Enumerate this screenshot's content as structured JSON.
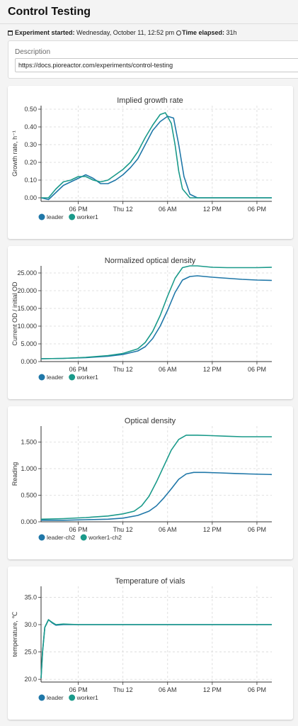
{
  "page": {
    "title": "Control Testing",
    "started_label": "Experiment started:",
    "started_value": "Wednesday, October 11, 12:52 pm",
    "elapsed_label": "Time elapsed:",
    "elapsed_value": "31h",
    "description_label": "Description",
    "description_value": "https://docs.pioreactor.com/experiments/control-testing"
  },
  "colors": {
    "leader": "#1f77a8",
    "worker": "#1a9a8a",
    "grid": "#d9d9d9"
  },
  "chart_data": [
    {
      "type": "line",
      "title": "Implied growth rate",
      "ylabel": "Growth rate, h⁻¹",
      "x_ticks": [
        "06 PM",
        "Thu 12",
        "06 AM",
        "12 PM",
        "06 PM"
      ],
      "x_tick_hours": [
        18,
        24,
        30,
        36,
        42
      ],
      "xlim": [
        13,
        44
      ],
      "ylim": [
        -0.02,
        0.52
      ],
      "y_ticks": [
        0.0,
        0.1,
        0.2,
        0.3,
        0.4,
        0.5
      ],
      "y_tick_labels": [
        "0.00",
        "0.10",
        "0.20",
        "0.30",
        "0.40",
        "0.50"
      ],
      "series": [
        {
          "name": "leader",
          "x": [
            13.0,
            14.0,
            15.0,
            16.0,
            17.0,
            18.0,
            19.0,
            20.0,
            21.0,
            22.0,
            23.0,
            24.0,
            25.0,
            26.0,
            27.0,
            28.0,
            29.0,
            30.0,
            30.8,
            31.5,
            32.2,
            33.0,
            34.0,
            36.0,
            38.0,
            40.0,
            42.0,
            44.0
          ],
          "y": [
            0.0,
            -0.01,
            0.03,
            0.07,
            0.09,
            0.11,
            0.13,
            0.11,
            0.08,
            0.08,
            0.1,
            0.13,
            0.17,
            0.22,
            0.3,
            0.38,
            0.43,
            0.46,
            0.45,
            0.3,
            0.12,
            0.02,
            0.0,
            0.0,
            0.0,
            0.0,
            0.0,
            0.0
          ]
        },
        {
          "name": "worker1",
          "x": [
            13.0,
            14.0,
            15.0,
            16.0,
            17.0,
            18.0,
            19.0,
            20.0,
            21.0,
            22.0,
            23.0,
            24.0,
            25.0,
            26.0,
            27.0,
            28.0,
            29.0,
            29.7,
            30.5,
            31.0,
            31.5,
            32.0,
            33.0,
            34.0,
            36.0,
            38.0,
            40.0,
            42.0,
            44.0
          ],
          "y": [
            0.0,
            0.0,
            0.05,
            0.09,
            0.1,
            0.12,
            0.12,
            0.1,
            0.09,
            0.1,
            0.13,
            0.16,
            0.2,
            0.26,
            0.34,
            0.41,
            0.47,
            0.48,
            0.42,
            0.3,
            0.15,
            0.05,
            0.0,
            0.0,
            0.0,
            0.0,
            0.0,
            0.0,
            0.0
          ]
        }
      ]
    },
    {
      "type": "line",
      "title": "Normalized optical density",
      "ylabel": "Current OD / initial OD",
      "x_ticks": [
        "06 PM",
        "Thu 12",
        "06 AM",
        "12 PM",
        "06 PM"
      ],
      "x_tick_hours": [
        18,
        24,
        30,
        36,
        42
      ],
      "xlim": [
        13,
        44
      ],
      "ylim": [
        0,
        27
      ],
      "y_ticks": [
        0,
        5,
        10,
        15,
        20,
        25
      ],
      "y_tick_labels": [
        "0.000",
        "5.000",
        "10.000",
        "15.000",
        "20.000",
        "25.000"
      ],
      "series": [
        {
          "name": "leader",
          "x": [
            13.0,
            16.0,
            19.0,
            22.0,
            24.0,
            26.0,
            27.0,
            28.0,
            29.0,
            30.0,
            31.0,
            32.0,
            33.0,
            34.0,
            36.0,
            38.0,
            40.0,
            42.0,
            44.0
          ],
          "y": [
            0.8,
            0.9,
            1.1,
            1.5,
            2.0,
            3.0,
            4.2,
            6.5,
            10.0,
            14.5,
            19.5,
            23.0,
            24.0,
            24.2,
            23.8,
            23.5,
            23.2,
            23.0,
            22.9
          ]
        },
        {
          "name": "worker1",
          "x": [
            13.0,
            16.0,
            19.0,
            22.0,
            24.0,
            26.0,
            27.0,
            28.0,
            29.0,
            30.0,
            31.0,
            32.0,
            33.0,
            34.0,
            36.0,
            38.0,
            40.0,
            42.0,
            44.0
          ],
          "y": [
            0.8,
            0.9,
            1.2,
            1.7,
            2.3,
            3.6,
            5.4,
            8.5,
            13.0,
            18.5,
            23.5,
            26.5,
            27.0,
            27.0,
            26.6,
            26.5,
            26.5,
            26.5,
            26.6
          ]
        }
      ]
    },
    {
      "type": "line",
      "title": "Optical density",
      "ylabel": "Reading",
      "x_ticks": [
        "06 PM",
        "Thu 12",
        "06 AM",
        "12 PM",
        "06 PM"
      ],
      "x_tick_hours": [
        18,
        24,
        30,
        36,
        42
      ],
      "xlim": [
        13,
        44
      ],
      "ylim": [
        0,
        1.8
      ],
      "y_ticks": [
        0,
        0.5,
        1.0,
        1.5
      ],
      "y_tick_labels": [
        "0.000",
        "0.500",
        "1.000",
        "1.500"
      ],
      "series": [
        {
          "name": "leader-ch2",
          "x": [
            13.0,
            16.0,
            19.0,
            22.0,
            24.0,
            26.0,
            27.5,
            28.5,
            29.5,
            30.5,
            31.5,
            32.5,
            33.5,
            35.0,
            37.0,
            39.0,
            41.0,
            44.0
          ],
          "y": [
            0.03,
            0.03,
            0.04,
            0.05,
            0.07,
            0.12,
            0.2,
            0.3,
            0.45,
            0.62,
            0.8,
            0.9,
            0.93,
            0.93,
            0.92,
            0.91,
            0.9,
            0.89
          ]
        },
        {
          "name": "worker1-ch2",
          "x": [
            13.0,
            16.0,
            19.0,
            22.0,
            24.0,
            25.5,
            26.5,
            27.5,
            28.5,
            29.5,
            30.5,
            31.5,
            32.5,
            34.0,
            36.0,
            38.0,
            40.0,
            42.0,
            44.0
          ],
          "y": [
            0.05,
            0.06,
            0.08,
            0.11,
            0.15,
            0.2,
            0.3,
            0.48,
            0.75,
            1.05,
            1.35,
            1.55,
            1.63,
            1.63,
            1.62,
            1.61,
            1.6,
            1.6,
            1.6
          ]
        }
      ]
    },
    {
      "type": "line",
      "title": "Temperature of vials",
      "ylabel": "temperature, ℃",
      "x_ticks": [
        "06 PM",
        "Thu 12",
        "06 AM",
        "12 PM",
        "06 PM"
      ],
      "x_tick_hours": [
        18,
        24,
        30,
        36,
        42
      ],
      "xlim": [
        13,
        44
      ],
      "ylim": [
        19.5,
        37
      ],
      "y_ticks": [
        20,
        25,
        30,
        35
      ],
      "y_tick_labels": [
        "20.0",
        "25.0",
        "30.0",
        "35.0"
      ],
      "series": [
        {
          "name": "leader",
          "x": [
            13.0,
            13.2,
            13.5,
            14.0,
            14.5,
            15.0,
            16.0,
            18.0,
            22.0,
            26.0,
            30.0,
            34.0,
            38.0,
            42.0,
            44.0
          ],
          "y": [
            20.2,
            25.0,
            29.5,
            30.9,
            30.3,
            29.9,
            30.0,
            30.0,
            30.0,
            30.0,
            30.0,
            30.0,
            30.0,
            30.0,
            30.0
          ]
        },
        {
          "name": "worker1",
          "x": [
            13.0,
            13.2,
            13.5,
            14.0,
            14.5,
            15.0,
            16.0,
            18.0,
            22.0,
            26.0,
            30.0,
            34.0,
            38.0,
            42.0,
            44.0
          ],
          "y": [
            20.2,
            25.0,
            29.5,
            30.9,
            30.4,
            30.0,
            30.1,
            30.0,
            30.0,
            30.0,
            30.0,
            30.0,
            30.0,
            30.0,
            30.0
          ]
        }
      ]
    }
  ]
}
